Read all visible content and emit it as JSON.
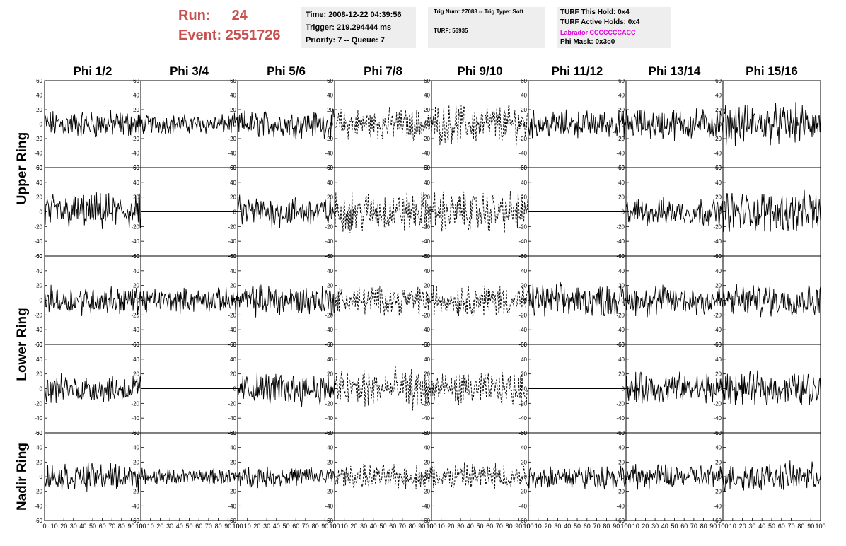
{
  "header": {
    "run_label": "Run:",
    "run_value": "24",
    "event_label": "Event:",
    "event_value": "2551726",
    "time_line": "Time: 2008-12-22 04:39:56",
    "trigger_line": "Trigger: 219.294444 ms",
    "priority_line": "Priority: 7 -- Queue: 7",
    "trig_line": "Trig Num: 27083 -- Trig Type: Soft",
    "turf_line": "TURF: 56935",
    "turf_hold_line": "TURF This Hold: 0x4",
    "turf_active_line": "TURF Active Holds: 0x4",
    "labrador_line": "Labrador CCCCCCCACC",
    "phi_mask_line": "Phi Mask: 0x3c0"
  },
  "colors": {
    "run_text": "#c8504f",
    "labrador_text": "#e000e0",
    "info_box": "#eeeeee"
  },
  "chart_data": {
    "type": "line",
    "columns": [
      "Phi 1/2",
      "Phi 3/4",
      "Phi 5/6",
      "Phi 7/8",
      "Phi 9/10",
      "Phi 11/12",
      "Phi 13/14",
      "Phi 15/16"
    ],
    "ring_labels": [
      "Upper Ring",
      "Lower Ring",
      "Nadir Ring"
    ],
    "ylim": [
      -60,
      60
    ],
    "xlim": [
      0,
      100
    ],
    "y_ticks": [
      -60,
      -40,
      -20,
      0,
      20,
      40,
      60
    ],
    "x_ticks": [
      0,
      10,
      20,
      30,
      40,
      50,
      60,
      70,
      80,
      90,
      100
    ],
    "rows": [
      {
        "ring": "Upper Ring",
        "amplitude": [
          14,
          10,
          14,
          16,
          20,
          14,
          16,
          20
        ],
        "dashed": [
          false,
          false,
          false,
          true,
          true,
          false,
          false,
          false
        ],
        "flat": [
          false,
          false,
          false,
          false,
          false,
          false,
          false,
          false
        ]
      },
      {
        "ring": "Upper Ring",
        "amplitude": [
          18,
          0,
          16,
          20,
          20,
          0,
          14,
          20
        ],
        "dashed": [
          false,
          false,
          false,
          true,
          true,
          false,
          false,
          false
        ],
        "flat": [
          false,
          true,
          false,
          false,
          false,
          true,
          false,
          false
        ]
      },
      {
        "ring": "Lower Ring",
        "amplitude": [
          14,
          12,
          16,
          14,
          16,
          16,
          16,
          16
        ],
        "dashed": [
          false,
          false,
          false,
          true,
          true,
          false,
          false,
          false
        ],
        "flat": [
          false,
          false,
          false,
          false,
          false,
          false,
          false,
          false
        ]
      },
      {
        "ring": "Lower Ring",
        "amplitude": [
          14,
          0,
          16,
          20,
          16,
          0,
          16,
          16
        ],
        "dashed": [
          false,
          false,
          false,
          true,
          true,
          false,
          false,
          false
        ],
        "flat": [
          false,
          true,
          false,
          false,
          false,
          true,
          false,
          false
        ]
      },
      {
        "ring": "Nadir Ring",
        "amplitude": [
          14,
          8,
          10,
          12,
          14,
          12,
          12,
          14
        ],
        "dashed": [
          false,
          false,
          false,
          true,
          true,
          false,
          false,
          false
        ],
        "flat": [
          false,
          false,
          false,
          false,
          false,
          false,
          false,
          false
        ]
      }
    ]
  }
}
